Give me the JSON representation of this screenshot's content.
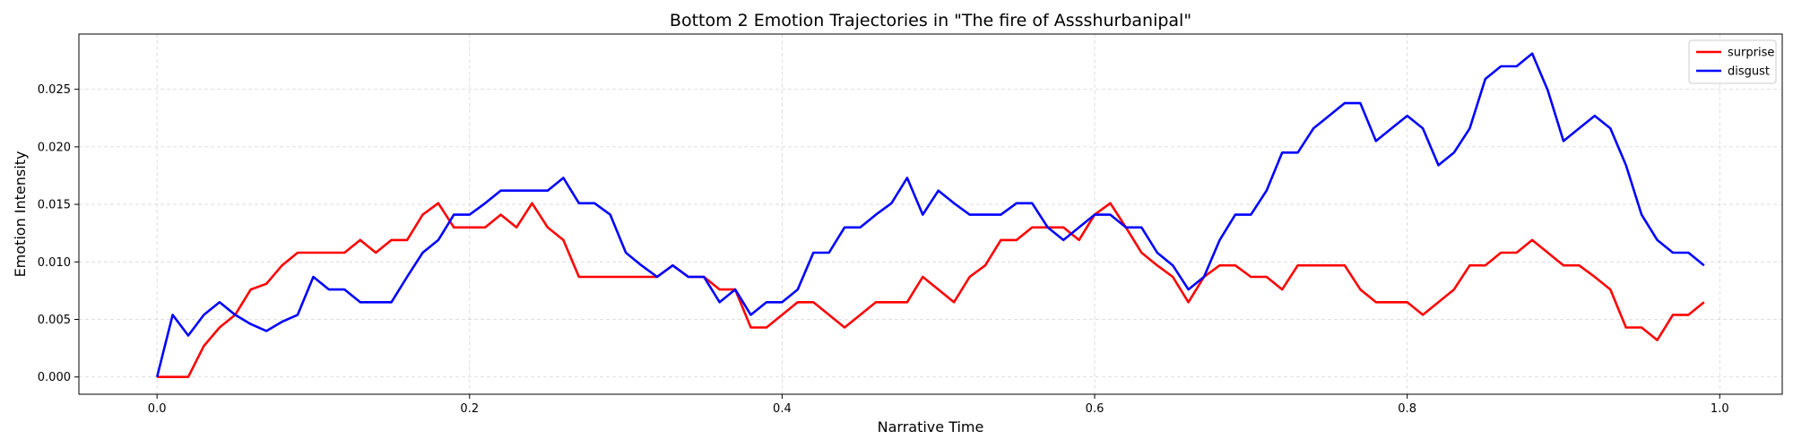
{
  "chart_data": {
    "type": "line",
    "title": "Bottom 2 Emotion Trajectories in \"The fire of Assshurbanipal\"",
    "xlabel": "Narrative Time",
    "ylabel": "Emotion Intensity",
    "xlim": [
      -0.05,
      1.04
    ],
    "ylim": [
      -0.0015,
      0.0298
    ],
    "xticks": [
      0.0,
      0.2,
      0.4,
      0.6,
      0.8,
      1.0
    ],
    "xtick_labels": [
      "0.0",
      "0.2",
      "0.4",
      "0.6",
      "0.8",
      "1.0"
    ],
    "yticks": [
      0.0,
      0.005,
      0.01,
      0.015,
      0.02,
      0.025
    ],
    "ytick_labels": [
      "0.000",
      "0.005",
      "0.010",
      "0.015",
      "0.020",
      "0.025"
    ],
    "grid": true,
    "legend_position": "top-right",
    "x": [
      0.0,
      0.01,
      0.02,
      0.03,
      0.04,
      0.05,
      0.06,
      0.07,
      0.08,
      0.09,
      0.1,
      0.11,
      0.12,
      0.13,
      0.14,
      0.15,
      0.16,
      0.17,
      0.18,
      0.19,
      0.2,
      0.21,
      0.22,
      0.23,
      0.24,
      0.25,
      0.26,
      0.27,
      0.28,
      0.29,
      0.3,
      0.31,
      0.32,
      0.33,
      0.34,
      0.35,
      0.36,
      0.37,
      0.38,
      0.39,
      0.4,
      0.41,
      0.42,
      0.43,
      0.44,
      0.45,
      0.46,
      0.47,
      0.48,
      0.49,
      0.5,
      0.51,
      0.52,
      0.53,
      0.54,
      0.55,
      0.56,
      0.57,
      0.58,
      0.59,
      0.6,
      0.61,
      0.62,
      0.63,
      0.64,
      0.65,
      0.66,
      0.67,
      0.68,
      0.69,
      0.7,
      0.71,
      0.72,
      0.73,
      0.74,
      0.75,
      0.76,
      0.77,
      0.78,
      0.79,
      0.8,
      0.81,
      0.82,
      0.83,
      0.84,
      0.85,
      0.86,
      0.87,
      0.88,
      0.89,
      0.9,
      0.91,
      0.92,
      0.93,
      0.94,
      0.95,
      0.96,
      0.97,
      0.98,
      0.99
    ],
    "series": [
      {
        "name": "surprise",
        "color": "#ff0000",
        "values": [
          0.0,
          0.0,
          0.0,
          0.0027,
          0.0043,
          0.0054,
          0.0076,
          0.0081,
          0.0097,
          0.0108,
          0.0108,
          0.0108,
          0.0108,
          0.0119,
          0.0108,
          0.0119,
          0.0119,
          0.0141,
          0.0151,
          0.013,
          0.013,
          0.013,
          0.0141,
          0.013,
          0.0151,
          0.013,
          0.0119,
          0.0087,
          0.0087,
          0.0087,
          0.0087,
          0.0087,
          0.0087,
          0.0097,
          0.0087,
          0.0087,
          0.0076,
          0.0076,
          0.0043,
          0.0043,
          0.0054,
          0.0065,
          0.0065,
          0.0054,
          0.0043,
          0.0054,
          0.0065,
          0.0065,
          0.0065,
          0.0087,
          0.0076,
          0.0065,
          0.0087,
          0.0097,
          0.0119,
          0.0119,
          0.013,
          0.013,
          0.013,
          0.0119,
          0.0141,
          0.0151,
          0.013,
          0.0108,
          0.0097,
          0.0087,
          0.0065,
          0.0087,
          0.0097,
          0.0097,
          0.0087,
          0.0087,
          0.0076,
          0.0097,
          0.0097,
          0.0097,
          0.0097,
          0.0076,
          0.0065,
          0.0065,
          0.0065,
          0.0054,
          0.0065,
          0.0076,
          0.0097,
          0.0097,
          0.0108,
          0.0108,
          0.0119,
          0.0108,
          0.0097,
          0.0097,
          0.0087,
          0.0076,
          0.0043,
          0.0043,
          0.0032,
          0.0054,
          0.0054,
          0.0065
        ]
      },
      {
        "name": "disgust",
        "color": "#0000ff",
        "values": [
          0.0,
          0.0054,
          0.0036,
          0.0054,
          0.0065,
          0.0054,
          0.0046,
          0.004,
          0.0048,
          0.0054,
          0.0087,
          0.0076,
          0.0076,
          0.0065,
          0.0065,
          0.0065,
          0.0087,
          0.0108,
          0.0119,
          0.0141,
          0.0141,
          0.0151,
          0.0162,
          0.0162,
          0.0162,
          0.0162,
          0.0173,
          0.0151,
          0.0151,
          0.0141,
          0.0108,
          0.0097,
          0.0087,
          0.0097,
          0.0087,
          0.0087,
          0.0065,
          0.0076,
          0.0054,
          0.0065,
          0.0065,
          0.0076,
          0.0108,
          0.0108,
          0.013,
          0.013,
          0.0141,
          0.0151,
          0.0173,
          0.0141,
          0.0162,
          0.0151,
          0.0141,
          0.0141,
          0.0141,
          0.0151,
          0.0151,
          0.013,
          0.0119,
          0.013,
          0.0141,
          0.0141,
          0.013,
          0.013,
          0.0108,
          0.0097,
          0.0076,
          0.0087,
          0.0119,
          0.0141,
          0.0141,
          0.0162,
          0.0195,
          0.0195,
          0.0216,
          0.0227,
          0.0238,
          0.0238,
          0.0205,
          0.0216,
          0.0227,
          0.0216,
          0.0184,
          0.0195,
          0.0216,
          0.0259,
          0.027,
          0.027,
          0.0281,
          0.0249,
          0.0205,
          0.0216,
          0.0227,
          0.0216,
          0.0184,
          0.0141,
          0.0119,
          0.0108,
          0.0108,
          0.0097
        ]
      }
    ]
  }
}
